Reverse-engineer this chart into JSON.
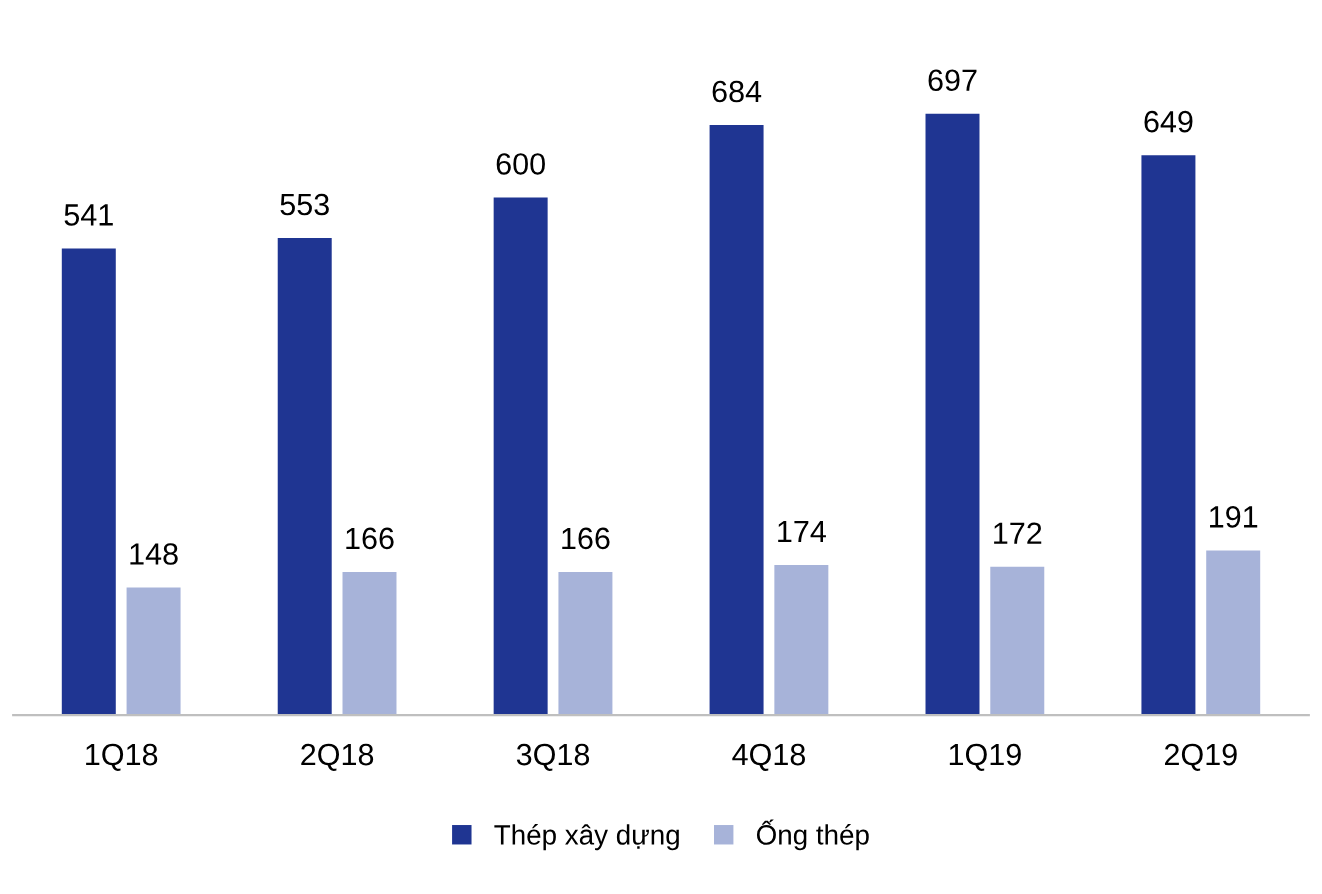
{
  "chart_data": {
    "type": "bar",
    "categories": [
      "1Q18",
      "2Q18",
      "3Q18",
      "4Q18",
      "1Q19",
      "2Q19"
    ],
    "series": [
      {
        "name": "Thép xây dựng",
        "color": "#1f3592",
        "values": [
          541,
          553,
          600,
          684,
          697,
          649
        ]
      },
      {
        "name": "Ống thép",
        "color": "#a7b3d9",
        "values": [
          148,
          166,
          166,
          174,
          172,
          191
        ]
      }
    ],
    "data_labels": true,
    "legend": "bottom",
    "grid": false
  }
}
